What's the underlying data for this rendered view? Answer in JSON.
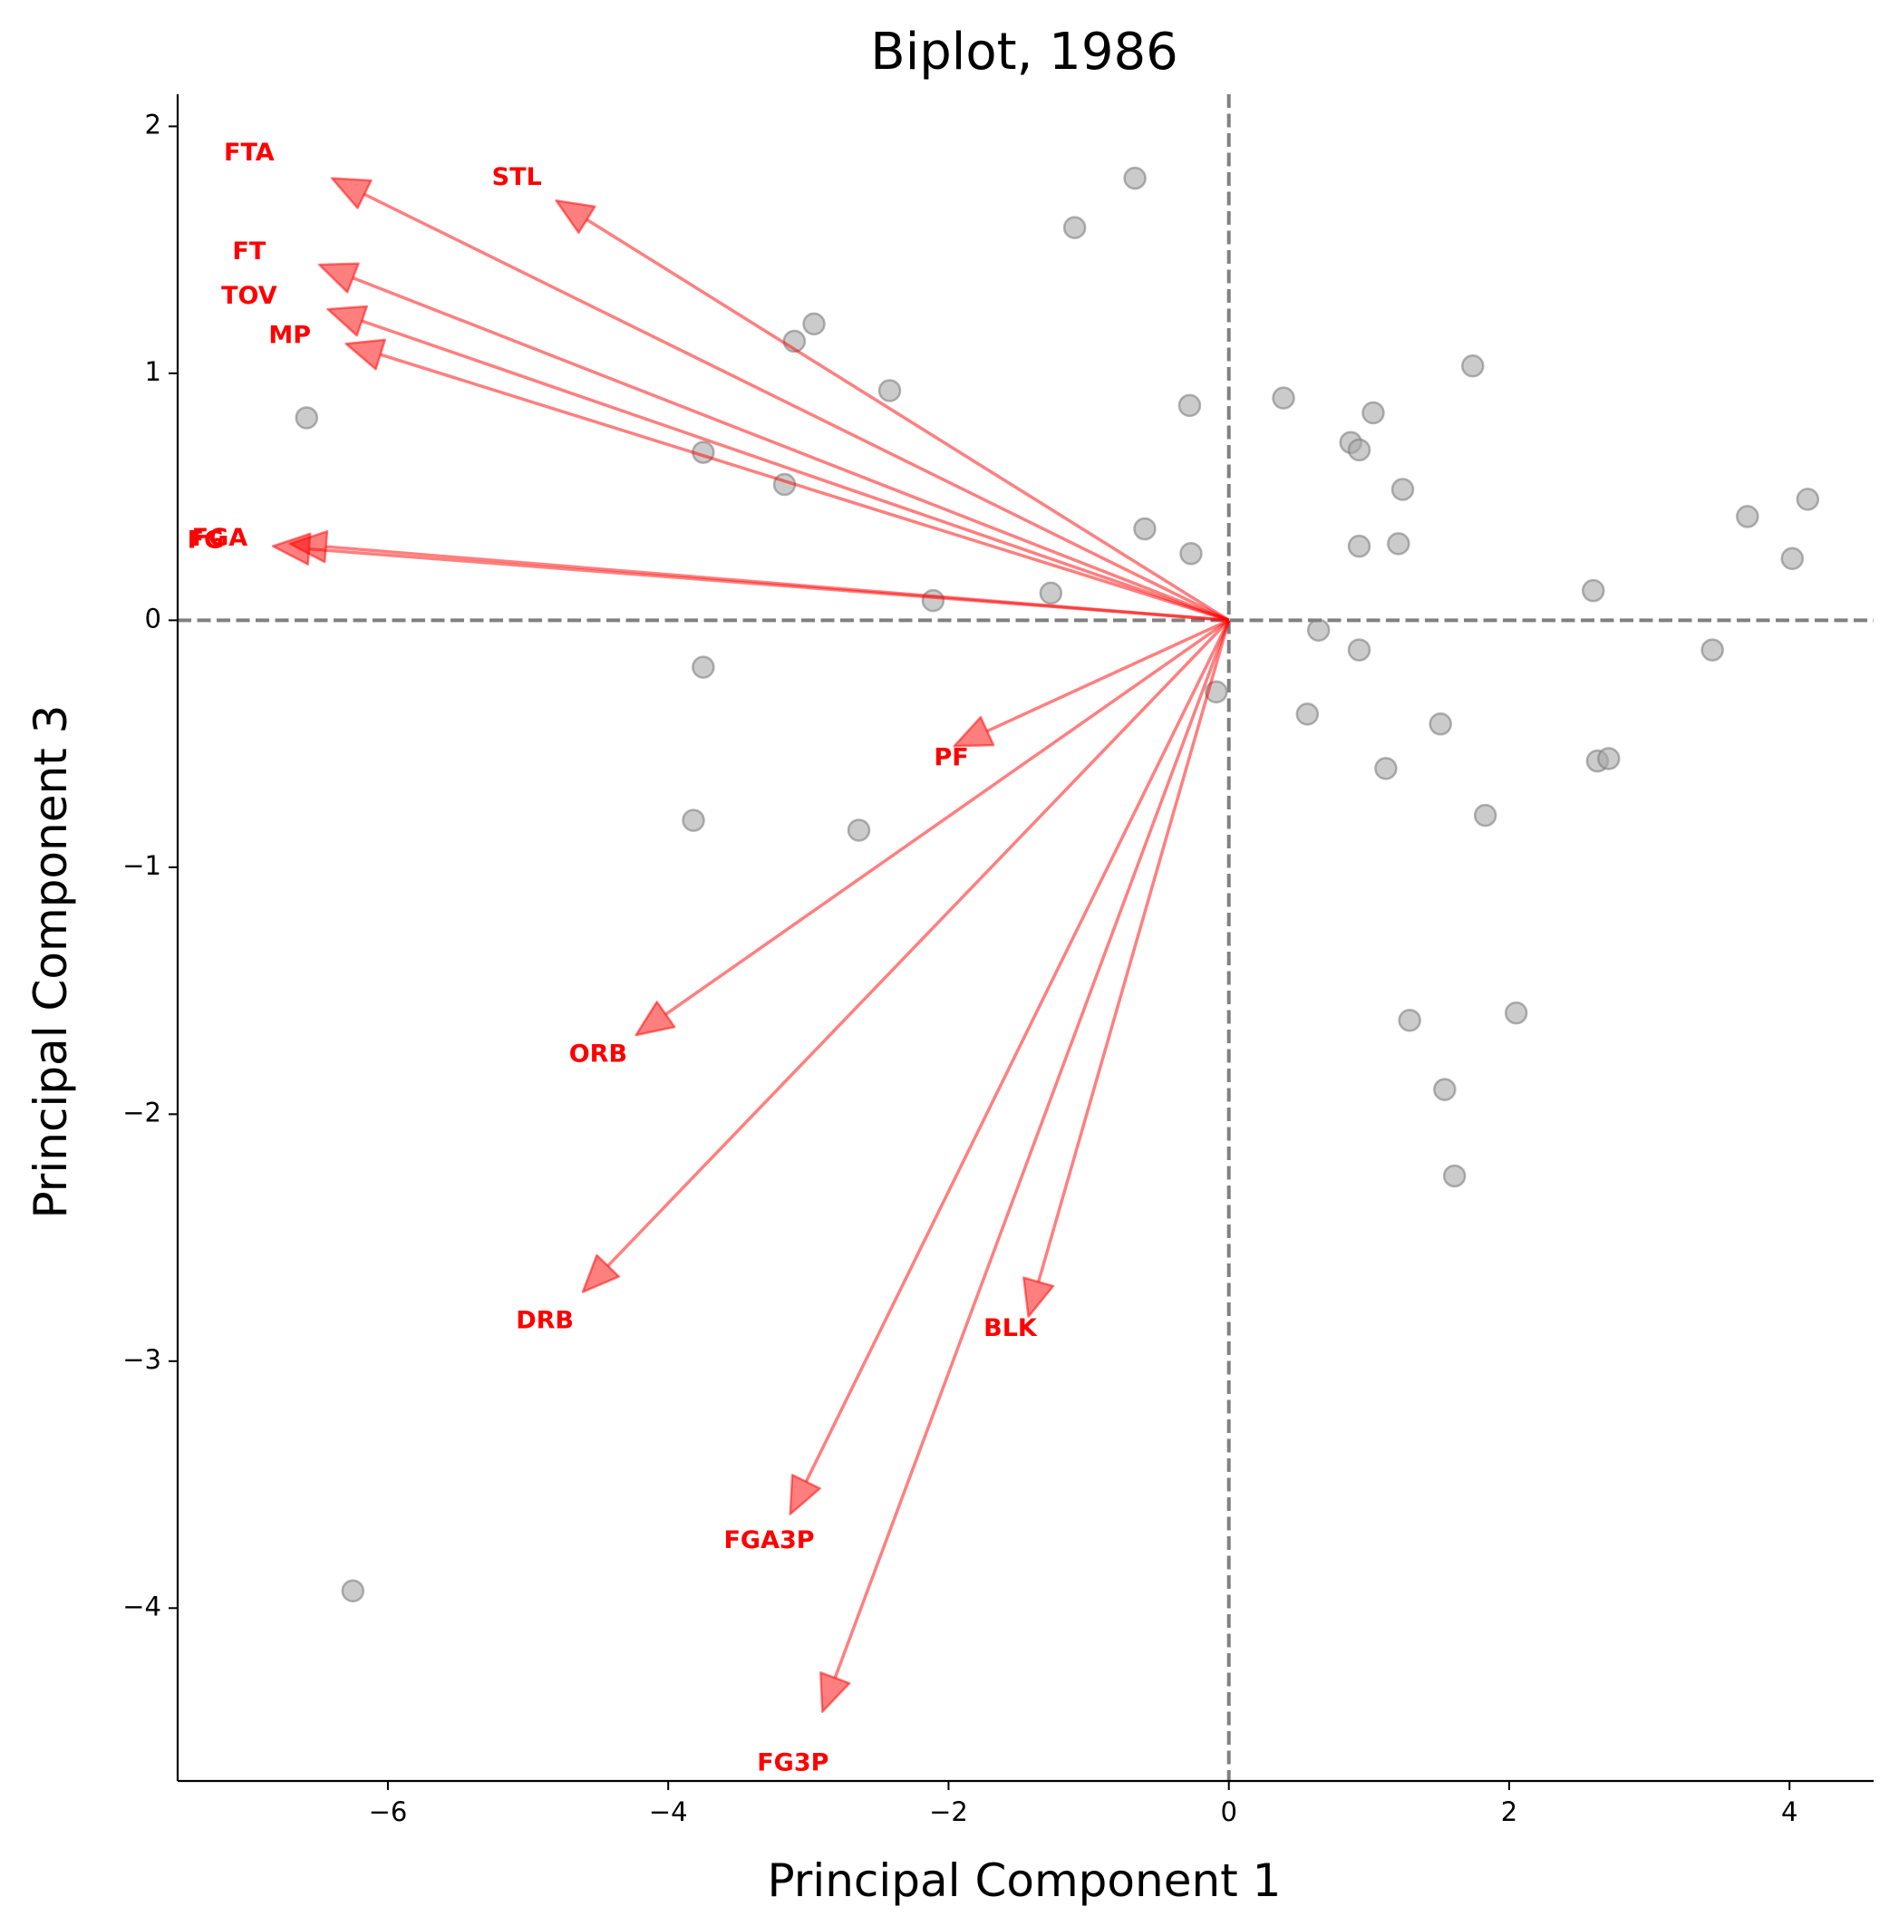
{
  "chart_data": {
    "type": "scatter",
    "title": "Biplot, 1986",
    "xlabel": "Principal Component 1",
    "ylabel": "Principal Component 3",
    "xlim": [
      -7.5,
      4.6
    ],
    "ylim": [
      -4.7,
      2.13
    ],
    "xticks": [
      -6,
      -4,
      -2,
      0,
      2,
      4
    ],
    "yticks": [
      -4,
      -3,
      -2,
      -1,
      0,
      1,
      2
    ],
    "grid": false,
    "reference_lines": {
      "x": 0,
      "y": 0,
      "style": "dashed",
      "color": "#808080"
    },
    "colors": {
      "points": "#a9a9a9",
      "arrows": "#ff0000",
      "labels": "#ff0000"
    },
    "points": [
      {
        "x": -6.58,
        "y": 0.82
      },
      {
        "x": -6.25,
        "y": -3.93
      },
      {
        "x": -3.75,
        "y": 0.68
      },
      {
        "x": -3.75,
        "y": -0.19
      },
      {
        "x": -3.82,
        "y": -0.81
      },
      {
        "x": -3.17,
        "y": 0.55
      },
      {
        "x": -3.1,
        "y": 1.13
      },
      {
        "x": -2.96,
        "y": 1.2
      },
      {
        "x": -2.64,
        "y": -0.85
      },
      {
        "x": -2.42,
        "y": 0.93
      },
      {
        "x": -2.11,
        "y": 0.08
      },
      {
        "x": -1.27,
        "y": 0.11
      },
      {
        "x": -1.1,
        "y": 1.59
      },
      {
        "x": -0.67,
        "y": 1.79
      },
      {
        "x": -0.6,
        "y": 0.37
      },
      {
        "x": -0.28,
        "y": 0.87
      },
      {
        "x": -0.27,
        "y": 0.27
      },
      {
        "x": -0.09,
        "y": -0.29
      },
      {
        "x": 0.39,
        "y": 0.9
      },
      {
        "x": 0.56,
        "y": -0.38
      },
      {
        "x": 0.64,
        "y": -0.04
      },
      {
        "x": 0.87,
        "y": 0.72
      },
      {
        "x": 0.93,
        "y": 0.69
      },
      {
        "x": 0.93,
        "y": 0.3
      },
      {
        "x": 0.93,
        "y": -0.12
      },
      {
        "x": 1.03,
        "y": 0.84
      },
      {
        "x": 1.12,
        "y": -0.6
      },
      {
        "x": 1.21,
        "y": 0.31
      },
      {
        "x": 1.24,
        "y": 0.53
      },
      {
        "x": 1.29,
        "y": -1.62
      },
      {
        "x": 1.51,
        "y": -0.42
      },
      {
        "x": 1.54,
        "y": -1.9
      },
      {
        "x": 1.61,
        "y": -2.25
      },
      {
        "x": 1.74,
        "y": 1.03
      },
      {
        "x": 1.83,
        "y": -0.79
      },
      {
        "x": 2.05,
        "y": -1.59
      },
      {
        "x": 2.6,
        "y": 0.12
      },
      {
        "x": 2.63,
        "y": -0.57
      },
      {
        "x": 2.71,
        "y": -0.56
      },
      {
        "x": 3.45,
        "y": -0.12
      },
      {
        "x": 3.7,
        "y": 0.42
      },
      {
        "x": 4.02,
        "y": 0.25
      },
      {
        "x": 4.13,
        "y": 0.49
      }
    ],
    "loadings": [
      {
        "name": "FTA",
        "x": -6.4,
        "y": 1.79
      },
      {
        "name": "STL",
        "x": -4.8,
        "y": 1.7
      },
      {
        "name": "FT",
        "x": -6.49,
        "y": 1.44
      },
      {
        "name": "TOV",
        "x": -6.43,
        "y": 1.26
      },
      {
        "name": "MP",
        "x": -6.3,
        "y": 1.12
      },
      {
        "name": "FGA",
        "x": -6.7,
        "y": 0.31
      },
      {
        "name": "FG",
        "x": -6.82,
        "y": 0.3
      },
      {
        "name": "PF",
        "x": -1.96,
        "y": -0.51
      },
      {
        "name": "ORB",
        "x": -4.23,
        "y": -1.68
      },
      {
        "name": "DRB",
        "x": -4.61,
        "y": -2.72
      },
      {
        "name": "BLK",
        "x": -1.43,
        "y": -2.82
      },
      {
        "name": "FGA3P",
        "x": -3.13,
        "y": -3.62
      },
      {
        "name": "FG3P",
        "x": -2.9,
        "y": -4.42
      }
    ],
    "label_positions": {
      "FTA": {
        "x": -6.99,
        "y": 1.89
      },
      "STL": {
        "x": -5.08,
        "y": 1.79
      },
      "FT": {
        "x": -6.99,
        "y": 1.49
      },
      "TOV": {
        "x": -6.99,
        "y": 1.31
      },
      "MP": {
        "x": -6.7,
        "y": 1.15
      },
      "FGA": {
        "x": -7.2,
        "y": 0.33
      },
      "FG": {
        "x": -7.3,
        "y": 0.32
      },
      "PF": {
        "x": -1.98,
        "y": -0.56
      },
      "ORB": {
        "x": -4.5,
        "y": -1.76
      },
      "DRB": {
        "x": -4.88,
        "y": -2.84
      },
      "BLK": {
        "x": -1.56,
        "y": -2.87
      },
      "FGA3P": {
        "x": -3.28,
        "y": -3.73
      },
      "FG3P": {
        "x": -3.11,
        "y": -4.63
      }
    }
  }
}
